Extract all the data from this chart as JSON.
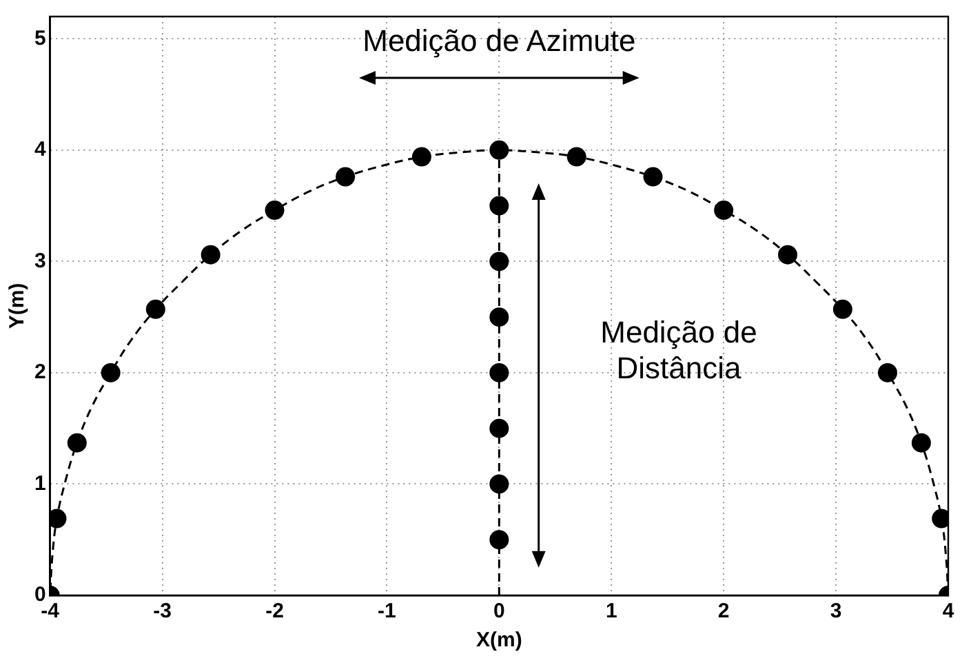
{
  "chart_data": {
    "type": "scatter",
    "xlabel": "X(m)",
    "ylabel": "Y(m)",
    "xlim": [
      -4,
      4
    ],
    "xticks": [
      -4,
      -3,
      -2,
      -1,
      0,
      1,
      2,
      3,
      4
    ],
    "ylim": [
      0,
      5.2
    ],
    "yticks": [
      0,
      1,
      2,
      3,
      4,
      5
    ],
    "grid": true,
    "marker": "circle",
    "annotations": [
      "Medição de Azimute",
      "Medição de\nDistância"
    ],
    "series": [
      {
        "type": "line",
        "color": "#000000",
        "marker": "none",
        "line_style": "dashed",
        "x": [
          4,
          3.98,
          3.94,
          3.86,
          3.76,
          3.63,
          3.46,
          3.28,
          3.06,
          2.82,
          2.57,
          2.29,
          2,
          1.69,
          1.37,
          1.04,
          0.69,
          0.35,
          0,
          -0.35,
          -0.69,
          -1.04,
          -1.37,
          -1.69,
          -2,
          -2.29,
          -2.57,
          -2.82,
          -3.06,
          -3.28,
          -3.46,
          -3.63,
          -3.76,
          -3.86,
          -3.94,
          -3.98,
          -4
        ],
        "values": [
          0,
          0.35,
          0.69,
          1.04,
          1.37,
          1.69,
          2,
          2.29,
          2.57,
          2.82,
          3.06,
          3.28,
          3.46,
          3.63,
          3.76,
          3.86,
          3.94,
          3.98,
          4,
          3.98,
          3.94,
          3.86,
          3.76,
          3.63,
          3.46,
          3.28,
          3.06,
          2.82,
          2.57,
          2.29,
          2,
          1.69,
          1.37,
          1.04,
          0.69,
          0.35,
          0
        ]
      },
      {
        "type": "line",
        "color": "#000000",
        "marker": "none",
        "line_style": "dashed",
        "x": [
          0,
          0
        ],
        "values": [
          0,
          4
        ]
      },
      {
        "color": "#000000",
        "x": [
          4,
          3.94,
          3.76,
          3.46,
          3.06,
          2.57,
          2,
          1.37,
          0.69,
          0,
          -0.69,
          -1.37,
          -2,
          -2.57,
          -3.06,
          -3.46,
          -3.76,
          -3.94,
          -4
        ],
        "values": [
          0,
          0.69,
          1.37,
          2,
          2.57,
          3.06,
          3.46,
          3.76,
          3.94,
          4,
          3.94,
          3.76,
          3.46,
          3.06,
          2.57,
          2,
          1.37,
          0.69,
          0
        ]
      },
      {
        "color": "#000000",
        "x": [
          0,
          0,
          0,
          0,
          0,
          0,
          0
        ],
        "values": [
          0.5,
          1,
          1.5,
          2,
          2.5,
          3,
          3.5
        ]
      }
    ]
  }
}
